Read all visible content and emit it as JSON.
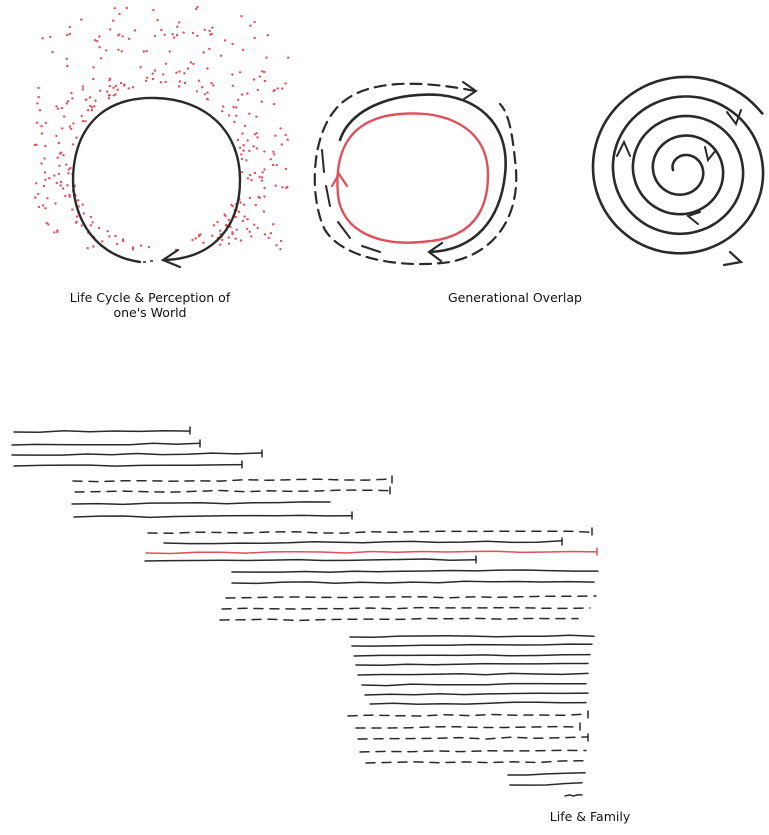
{
  "captions": {
    "life_cycle_line1": "Life Cycle & Perception of",
    "life_cycle_line2": "one's World",
    "generational_overlap": "Generational Overlap",
    "life_family": "Life & Family"
  },
  "colors": {
    "ink": "#2a2a2a",
    "accent_red": "#e0505a",
    "background": "#ffffff"
  }
}
